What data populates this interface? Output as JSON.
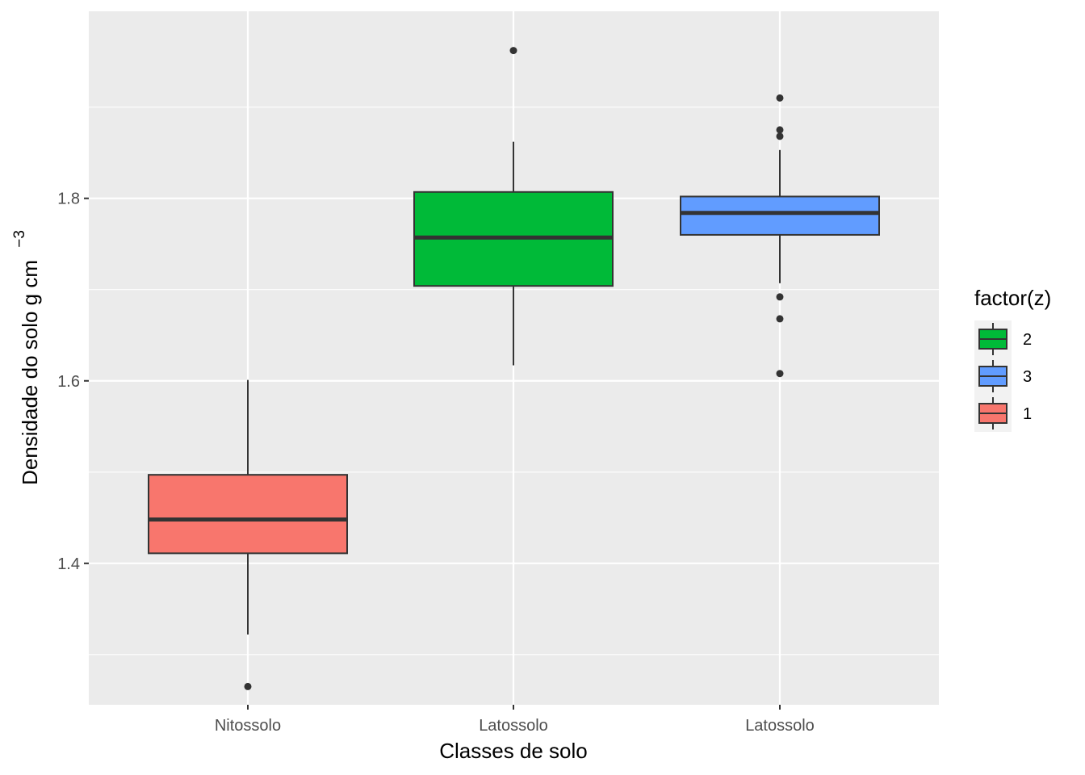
{
  "chart_data": {
    "type": "boxplot",
    "xlabel": "Classes de solo",
    "ylabel": "Densidade do solo g cm",
    "ylabel_superscript": "−3",
    "ylim": [
      1.245,
      2.005
    ],
    "yticks": [
      1.4,
      1.6,
      1.8
    ],
    "ytick_labels": [
      "1.4",
      "1.6",
      "1.8"
    ],
    "grid": true,
    "legend_position": "right",
    "categories": [
      "Nitossolo",
      "Latossolo",
      "Latossolo"
    ],
    "boxes": [
      {
        "category": "Nitossolo",
        "group": "1",
        "color": "#F8766D",
        "lower_whisker": 1.322,
        "q1": 1.411,
        "median": 1.448,
        "q3": 1.497,
        "upper_whisker": 1.601,
        "outliers": [
          1.265
        ]
      },
      {
        "category": "Latossolo",
        "group": "2",
        "color": "#00BA38",
        "lower_whisker": 1.617,
        "q1": 1.704,
        "median": 1.757,
        "q3": 1.807,
        "upper_whisker": 1.862,
        "outliers": [
          1.962
        ]
      },
      {
        "category": "Latossolo",
        "group": "3",
        "color": "#619CFF",
        "lower_whisker": 1.707,
        "q1": 1.76,
        "median": 1.784,
        "q3": 1.802,
        "upper_whisker": 1.853,
        "outliers": [
          1.91,
          1.875,
          1.868,
          1.692,
          1.668,
          1.608
        ]
      }
    ],
    "legend": {
      "title": "factor(z)",
      "entries": [
        {
          "label": "2",
          "color": "#00BA38"
        },
        {
          "label": "3",
          "color": "#619CFF"
        },
        {
          "label": "1",
          "color": "#F8766D"
        }
      ]
    },
    "colors": {
      "panel_bg": "#EBEBEB",
      "grid_major": "#FFFFFF",
      "box_outline": "#333333"
    }
  }
}
